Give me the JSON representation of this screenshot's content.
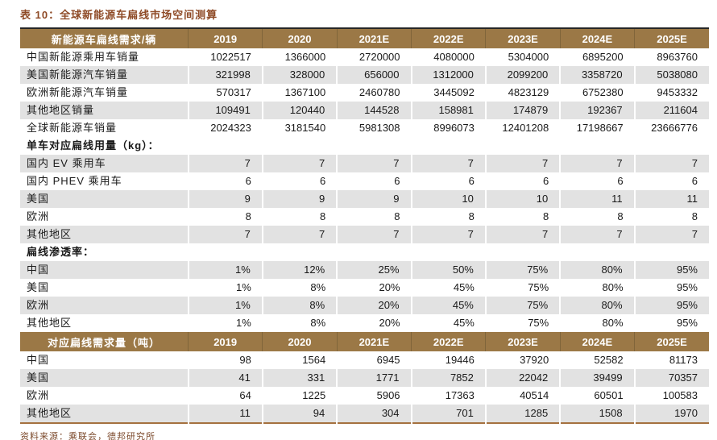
{
  "title": "表 10：全球新能源车扁线市场空间测算",
  "source_note": "资料来源：乘联会，德邦研究所",
  "colors": {
    "header_band": "#9B7846",
    "band_separator": "#80653A",
    "band_text": "#FFFFFF",
    "row_stripe": "#E2E2E2",
    "title_text": "#8E4A26",
    "source_text": "#7C4A2C",
    "table_top_border": "#262626",
    "table_bottom_border": "#A5713F"
  },
  "table": {
    "years": [
      "2019",
      "2020",
      "2021E",
      "2022E",
      "2023E",
      "2024E",
      "2025E"
    ],
    "rows": [
      {
        "kind": "band",
        "label": "新能源车扁线需求/辆"
      },
      {
        "kind": "data",
        "shaded": false,
        "label": "中国新能源乘用车销量",
        "values": [
          1022517,
          1366000,
          2720000,
          4080000,
          5304000,
          6895200,
          8963760
        ]
      },
      {
        "kind": "data",
        "shaded": true,
        "label": "美国新能源汽车销量",
        "values": [
          321998,
          328000,
          656000,
          1312000,
          2099200,
          3358720,
          5038080
        ]
      },
      {
        "kind": "data",
        "shaded": false,
        "label": "欧洲新能源汽车销量",
        "values": [
          570317,
          1367100,
          2460780,
          3445092,
          4823129,
          6752380,
          9453332
        ]
      },
      {
        "kind": "data",
        "shaded": true,
        "label": "其他地区销量",
        "values": [
          109491,
          120440,
          144528,
          158981,
          174879,
          192367,
          211604
        ]
      },
      {
        "kind": "data",
        "shaded": false,
        "label": "全球新能源车销量",
        "values": [
          2024323,
          3181540,
          5981308,
          8996073,
          12401208,
          17198667,
          23666776
        ]
      },
      {
        "kind": "section",
        "label": "单车对应扁线用量（kg）："
      },
      {
        "kind": "data",
        "shaded": true,
        "label": "国内 EV 乘用车",
        "values": [
          7,
          7,
          7,
          7,
          7,
          7,
          7
        ]
      },
      {
        "kind": "data",
        "shaded": false,
        "label": "国内 PHEV 乘用车",
        "values": [
          6,
          6,
          6,
          6,
          6,
          6,
          6
        ]
      },
      {
        "kind": "data",
        "shaded": true,
        "label": "美国",
        "values": [
          9,
          9,
          9,
          10,
          10,
          11,
          11
        ]
      },
      {
        "kind": "data",
        "shaded": false,
        "label": "欧洲",
        "values": [
          8,
          8,
          8,
          8,
          8,
          8,
          8
        ]
      },
      {
        "kind": "data",
        "shaded": true,
        "label": "其他地区",
        "values": [
          7,
          7,
          7,
          7,
          7,
          7,
          7
        ]
      },
      {
        "kind": "section",
        "label": "扁线渗透率："
      },
      {
        "kind": "data",
        "shaded": true,
        "label": "中国",
        "values": [
          "1%",
          "12%",
          "25%",
          "50%",
          "75%",
          "80%",
          "95%"
        ]
      },
      {
        "kind": "data",
        "shaded": false,
        "label": "美国",
        "values": [
          "1%",
          "8%",
          "20%",
          "45%",
          "75%",
          "80%",
          "95%"
        ]
      },
      {
        "kind": "data",
        "shaded": true,
        "label": "欧洲",
        "values": [
          "1%",
          "8%",
          "20%",
          "45%",
          "75%",
          "80%",
          "95%"
        ]
      },
      {
        "kind": "data",
        "shaded": false,
        "label": "其他地区",
        "values": [
          "1%",
          "8%",
          "20%",
          "45%",
          "75%",
          "80%",
          "95%"
        ]
      },
      {
        "kind": "band",
        "label": "对应扁线需求量（吨）"
      },
      {
        "kind": "data",
        "shaded": false,
        "label": "中国",
        "values": [
          98,
          1564,
          6945,
          19446,
          37920,
          52582,
          81173
        ]
      },
      {
        "kind": "data",
        "shaded": true,
        "label": "美国",
        "values": [
          41,
          331,
          1771,
          7852,
          22042,
          39499,
          70357
        ]
      },
      {
        "kind": "data",
        "shaded": false,
        "label": "欧洲",
        "values": [
          64,
          1225,
          5906,
          17363,
          40514,
          60501,
          100583
        ]
      },
      {
        "kind": "data",
        "shaded": true,
        "label": "其他地区",
        "values": [
          11,
          94,
          304,
          701,
          1285,
          1508,
          1970
        ]
      }
    ]
  }
}
